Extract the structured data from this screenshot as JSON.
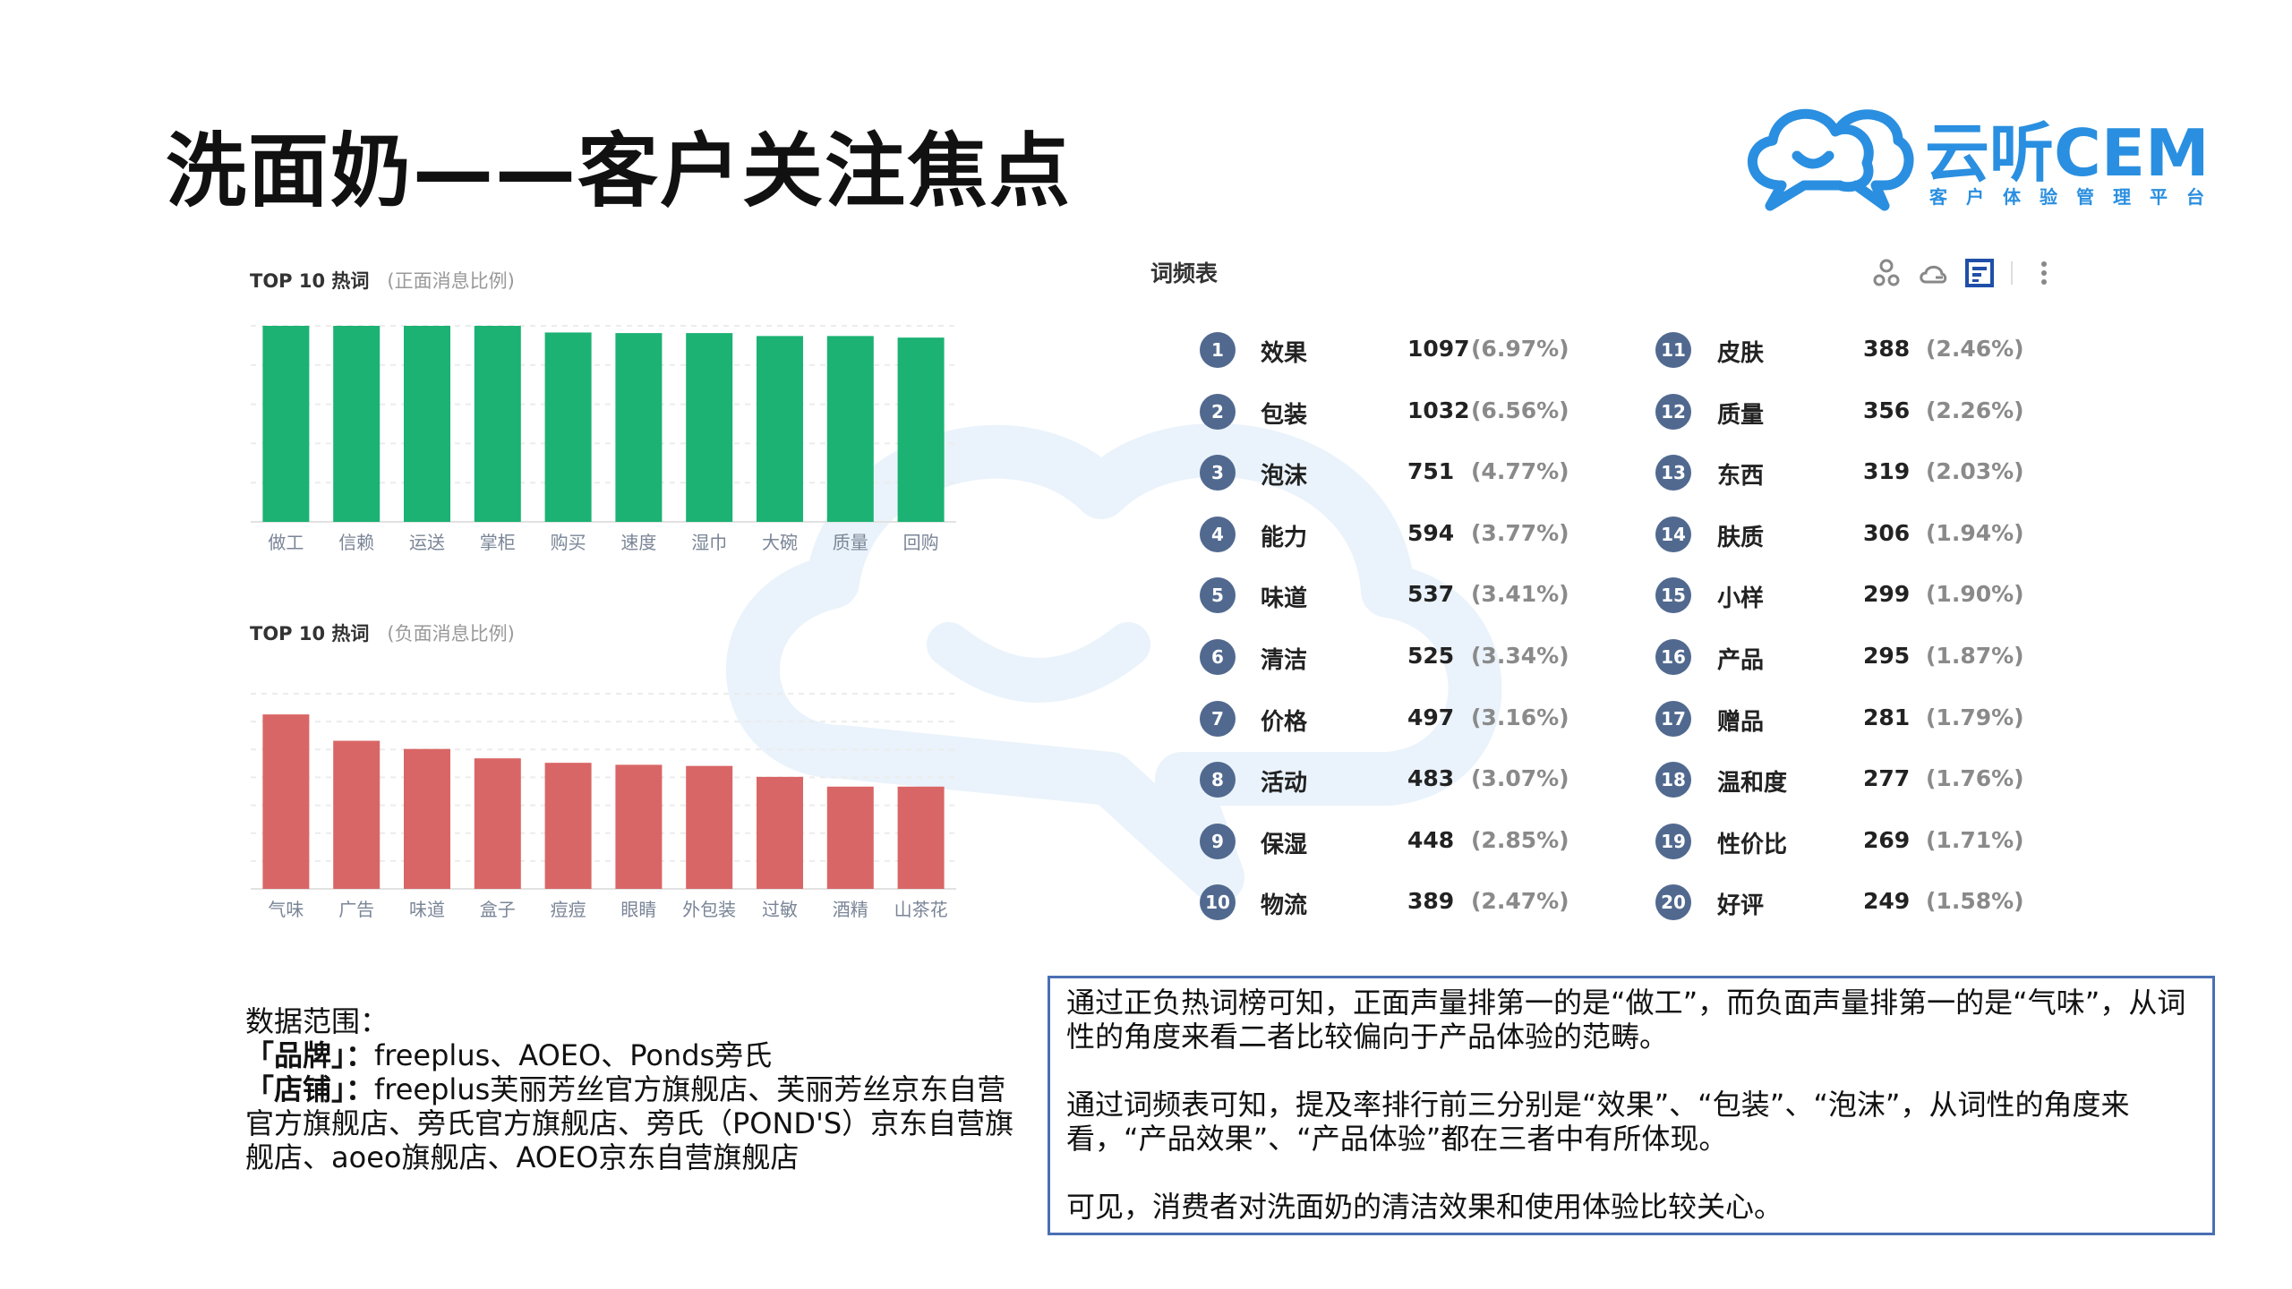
{
  "title": "洗面奶——客户关注焦点",
  "logo": {
    "text": "云听CEM",
    "tagline": "客户体验管理平台",
    "color": "#2a8fe0"
  },
  "colors": {
    "positive_bar": "#1bb273",
    "negative_bar": "#d96666",
    "rank_badge": "#51698f",
    "box_border": "#4a6fb3"
  },
  "chart_data": [
    {
      "type": "bar",
      "title": "TOP 10 热词",
      "subtitle": "(正面消息比例)",
      "categories": [
        "做工",
        "信赖",
        "运送",
        "掌柜",
        "购买",
        "速度",
        "湿巾",
        "大碗",
        "质量",
        "回购"
      ],
      "values": [
        1.0,
        1.0,
        1.0,
        1.0,
        0.966,
        0.963,
        0.963,
        0.948,
        0.948,
        0.94
      ],
      "ylim": [
        0,
        1
      ],
      "grid": true,
      "color": "#1bb273"
    },
    {
      "type": "bar",
      "title": "TOP 10 热词",
      "subtitle": "(负面消息比例)",
      "categories": [
        "气味",
        "广告",
        "味道",
        "盒子",
        "痘痘",
        "眼睛",
        "外包装",
        "过敏",
        "酒精",
        "山茶花"
      ],
      "values": [
        0.894,
        0.759,
        0.717,
        0.669,
        0.646,
        0.636,
        0.63,
        0.574,
        0.524,
        0.524
      ],
      "ylim": [
        0,
        1
      ],
      "grid": true,
      "color": "#d96666"
    }
  ],
  "freq_table": {
    "title": "词频表",
    "toolbar_icons": [
      "cluster-icon",
      "cloud-icon",
      "table-view-icon",
      "more-vertical-icon"
    ],
    "rows": [
      {
        "rank": "1",
        "word": "效果",
        "count": "1097",
        "pct": "(6.97%)"
      },
      {
        "rank": "2",
        "word": "包装",
        "count": "1032",
        "pct": "(6.56%)"
      },
      {
        "rank": "3",
        "word": "泡沫",
        "count": "751",
        "pct": "(4.77%)"
      },
      {
        "rank": "4",
        "word": "能力",
        "count": "594",
        "pct": "(3.77%)"
      },
      {
        "rank": "5",
        "word": "味道",
        "count": "537",
        "pct": "(3.41%)"
      },
      {
        "rank": "6",
        "word": "清洁",
        "count": "525",
        "pct": "(3.34%)"
      },
      {
        "rank": "7",
        "word": "价格",
        "count": "497",
        "pct": "(3.16%)"
      },
      {
        "rank": "8",
        "word": "活动",
        "count": "483",
        "pct": "(3.07%)"
      },
      {
        "rank": "9",
        "word": "保湿",
        "count": "448",
        "pct": "(2.85%)"
      },
      {
        "rank": "10",
        "word": "物流",
        "count": "389",
        "pct": "(2.47%)"
      },
      {
        "rank": "11",
        "word": "皮肤",
        "count": "388",
        "pct": "(2.46%)"
      },
      {
        "rank": "12",
        "word": "质量",
        "count": "356",
        "pct": "(2.26%)"
      },
      {
        "rank": "13",
        "word": "东西",
        "count": "319",
        "pct": "(2.03%)"
      },
      {
        "rank": "14",
        "word": "肤质",
        "count": "306",
        "pct": "(1.94%)"
      },
      {
        "rank": "15",
        "word": "小样",
        "count": "299",
        "pct": "(1.90%)"
      },
      {
        "rank": "16",
        "word": "产品",
        "count": "295",
        "pct": "(1.87%)"
      },
      {
        "rank": "17",
        "word": "赠品",
        "count": "281",
        "pct": "(1.79%)"
      },
      {
        "rank": "18",
        "word": "温和度",
        "count": "277",
        "pct": "(1.76%)"
      },
      {
        "rank": "19",
        "word": "性价比",
        "count": "269",
        "pct": "(1.71%)"
      },
      {
        "rank": "20",
        "word": "好评",
        "count": "249",
        "pct": "(1.58%)"
      }
    ]
  },
  "scope": {
    "heading": "数据范围：",
    "brand_label": "「品牌」：",
    "brand_value": "freeplus、AOEO、Ponds旁氏",
    "store_label": "「店铺」：",
    "store_value": "freeplus芙丽芳丝官方旗舰店、芙丽芳丝京东自营官方旗舰店、旁氏官方旗舰店、旁氏（POND'S）京东自营旗舰店、aoeo旗舰店、AOEO京东自营旗舰店"
  },
  "summary": [
    "通过正负热词榜可知，正面声量排第一的是“做工”，而负面声量排第一的是“气味”，从词性的角度来看二者比较偏向于产品体验的范畴。",
    "通过词频表可知，提及率排行前三分别是“效果”、“包装”、“泡沫”，从词性的角度来看，“产品效果”、“产品体验”都在三者中有所体现。",
    "可见，消费者对洗面奶的清洁效果和使用体验比较关心。"
  ]
}
